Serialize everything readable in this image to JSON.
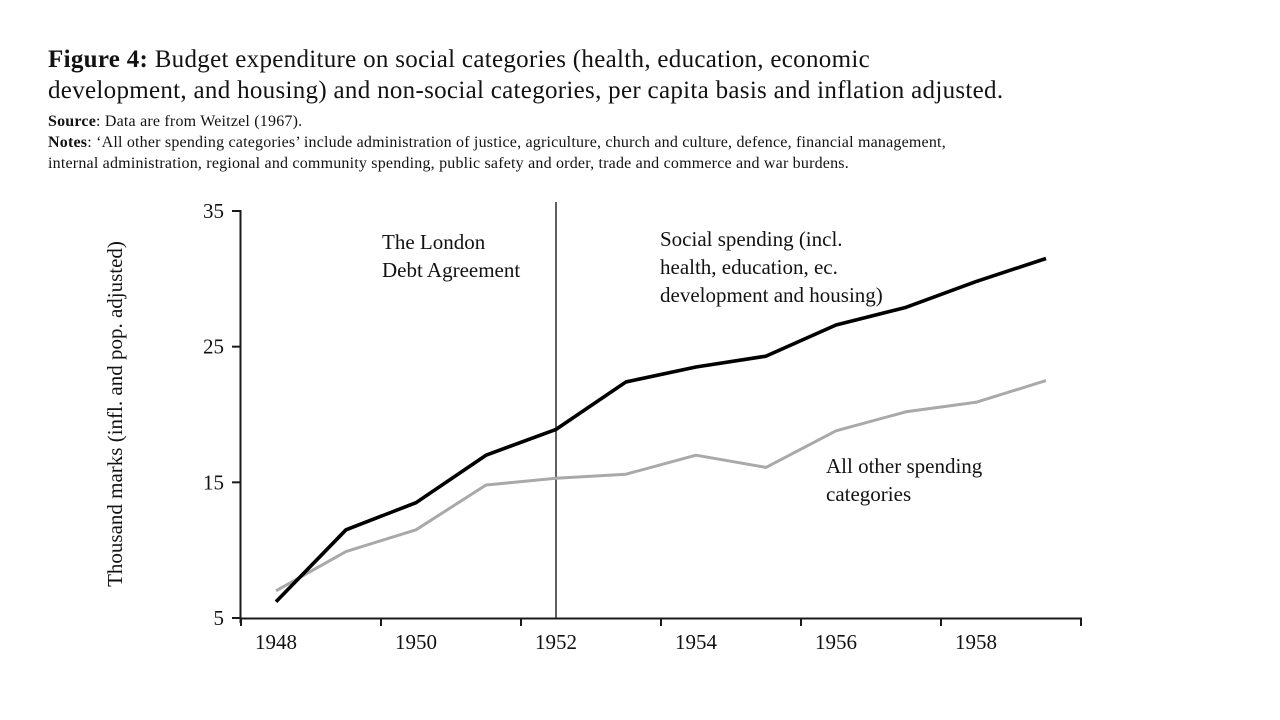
{
  "caption": {
    "figure_label": "Figure 4:",
    "title": " Budget expenditure on social categories (health, education, economic\ndevelopment, and housing) and non-social categories, per capita basis and inflation adjusted."
  },
  "source": {
    "label": "Source",
    "text": ": Data are from Weitzel (1967)."
  },
  "notes": {
    "label": "Notes",
    "text": ": ‘All other spending categories’ include administration of justice, agriculture, church and culture, defence, financial management,\ninternal administration, regional and community spending, public safety and order, trade and commerce and war burdens."
  },
  "chart_data": {
    "type": "line",
    "title": "",
    "xlabel": "",
    "ylabel": "Thousand marks (infl. and pop. adjusted)",
    "x": [
      1948,
      1949,
      1950,
      1951,
      1952,
      1953,
      1954,
      1955,
      1956,
      1957,
      1958,
      1959
    ],
    "x_axis_tick_labels": [
      "1948",
      "1950",
      "1952",
      "1954",
      "1956",
      "1958"
    ],
    "y_axis_ticks": [
      5,
      15,
      25,
      35
    ],
    "ylim": [
      5,
      35
    ],
    "grid": false,
    "legend_position": "none",
    "series": [
      {
        "key": "social-spending",
        "name": "Social spending (incl. health, education, ec. development and housing)",
        "color": "#000000",
        "values": [
          6.2,
          11.5,
          13.5,
          17.0,
          18.9,
          22.4,
          23.5,
          24.3,
          26.6,
          27.9,
          29.8,
          31.5
        ]
      },
      {
        "key": "all-other-spending",
        "name": "All other spending categories",
        "color": "#a9a9a9",
        "values": [
          7.0,
          9.9,
          11.5,
          14.8,
          15.3,
          15.6,
          17.0,
          16.1,
          18.8,
          20.2,
          20.9,
          22.5
        ]
      }
    ],
    "vline": {
      "x": 1952,
      "label": "The London Debt Agreement"
    },
    "annotations": {
      "london": "The London\nDebt Agreement",
      "social": "Social spending (incl.\nhealth, education, ec.\ndevelopment and housing)",
      "other": "All other spending\ncategories"
    }
  }
}
